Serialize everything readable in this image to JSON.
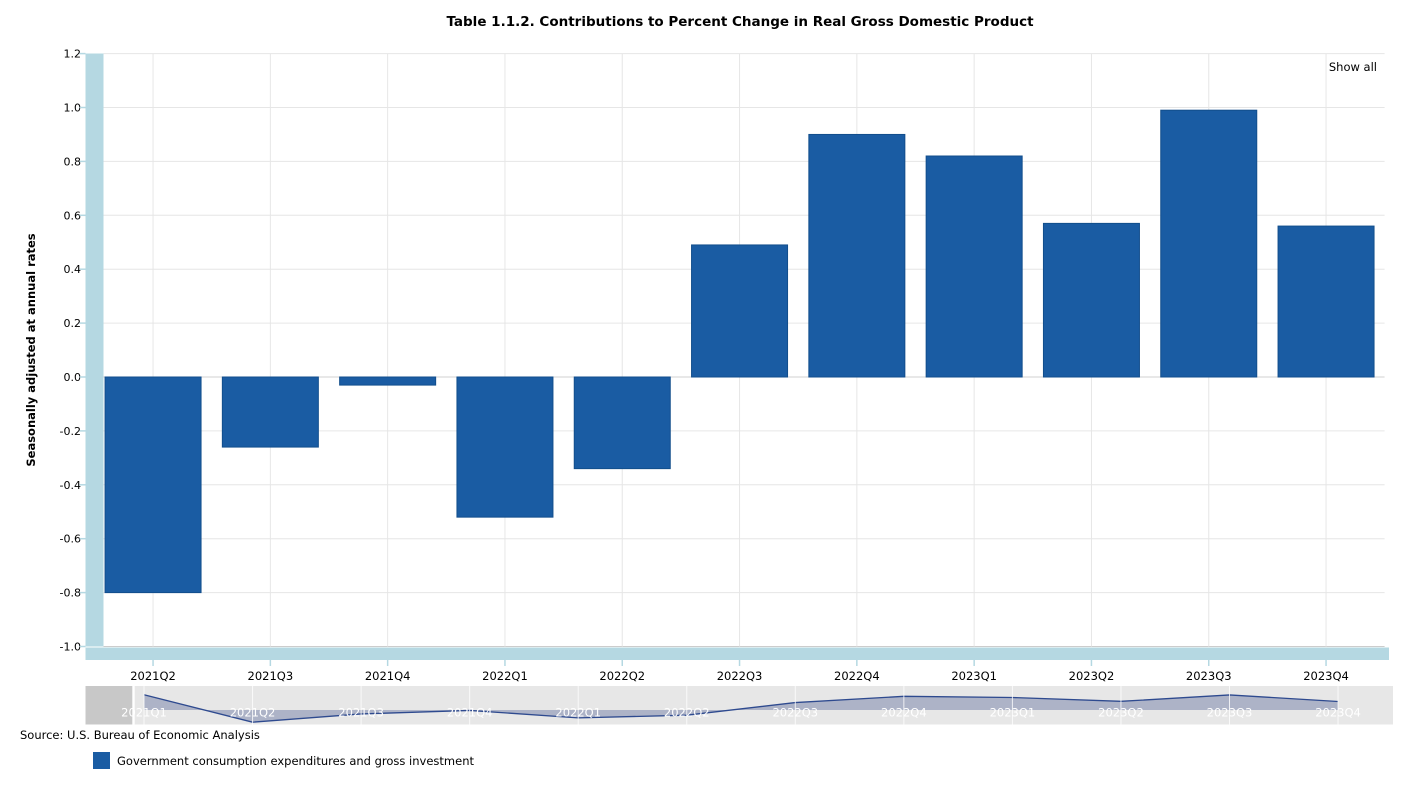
{
  "title": "Table 1.1.2. Contributions to Percent Change in Real Gross Domestic Product",
  "controls": {
    "show_all": "Show all"
  },
  "source": "Source: U.S. Bureau of Economic Analysis",
  "legend": {
    "label": "Government consumption expenditures and gross investment"
  },
  "chart_data": {
    "type": "bar",
    "title": "Table 1.1.2. Contributions to Percent Change in Real Gross Domestic Product",
    "xlabel": "",
    "ylabel": "Seasonally adjusted at annual rates",
    "ylim": [
      -1.0,
      1.2
    ],
    "ytick_interval": 0.2,
    "grid": true,
    "legend_position": "bottom-left",
    "categories": [
      "2021Q2",
      "2021Q3",
      "2021Q4",
      "2022Q1",
      "2022Q2",
      "2022Q3",
      "2022Q4",
      "2023Q1",
      "2023Q2",
      "2023Q3",
      "2023Q4"
    ],
    "series": [
      {
        "name": "Government consumption expenditures and gross investment",
        "values": [
          -0.8,
          -0.26,
          -0.03,
          -0.52,
          -0.34,
          0.49,
          0.9,
          0.82,
          0.57,
          0.99,
          0.56
        ]
      }
    ],
    "navigator": {
      "categories": [
        "2021Q1",
        "2021Q2",
        "2021Q3",
        "2021Q4",
        "2022Q1",
        "2022Q2",
        "2022Q3",
        "2022Q4",
        "2023Q1",
        "2023Q2",
        "2023Q3",
        "2023Q4"
      ],
      "values": [
        1.0,
        -0.8,
        -0.26,
        -0.03,
        -0.52,
        -0.34,
        0.49,
        0.9,
        0.82,
        0.57,
        0.99,
        0.56
      ]
    }
  },
  "colors": {
    "bar": "#1A5CA3",
    "bar_border": "#124E8C",
    "gridline": "#E6E6E6",
    "zero_line": "#D2D2D2",
    "axis_line": "#CCCCCC",
    "scrollbar": "#B5D8E2",
    "navigator_bg": "#E7E7E7",
    "navigator_mask": "#C8C8C8",
    "navigator_line": "#2E4A8F",
    "navigator_fill": "#8E97B5",
    "navigator_label": "#FFFFFF",
    "label_text": "#000000"
  }
}
